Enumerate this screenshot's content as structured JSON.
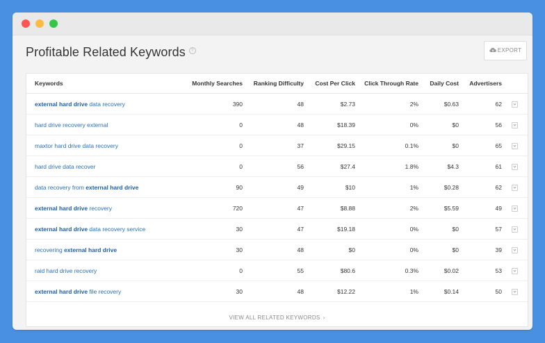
{
  "window": {
    "traffic_lights": [
      "close",
      "minimize",
      "zoom"
    ]
  },
  "header": {
    "title": "Profitable Related Keywords",
    "help_icon": "question-circle-icon",
    "export_label": "EXPORT",
    "export_icon": "cloud-download-icon"
  },
  "table": {
    "columns": [
      "Keywords",
      "Monthly Searches",
      "Ranking Difficulty",
      "Cost Per Click",
      "Click Through Rate",
      "Daily Cost",
      "Advertisers"
    ],
    "rows": [
      {
        "kw_pre": "",
        "kw_bold": "external hard drive",
        "kw_post": " data recovery",
        "searches": "390",
        "difficulty": "48",
        "cpc": "$2.73",
        "ctr": "2%",
        "daily": "$0.63",
        "adv": "62"
      },
      {
        "kw_pre": "hard drive recovery external",
        "kw_bold": "",
        "kw_post": "",
        "searches": "0",
        "difficulty": "48",
        "cpc": "$18.39",
        "ctr": "0%",
        "daily": "$0",
        "adv": "56"
      },
      {
        "kw_pre": "maxtor hard drive data recovery",
        "kw_bold": "",
        "kw_post": "",
        "searches": "0",
        "difficulty": "37",
        "cpc": "$29.15",
        "ctr": "0.1%",
        "daily": "$0",
        "adv": "65"
      },
      {
        "kw_pre": "hard drive data recover",
        "kw_bold": "",
        "kw_post": "",
        "searches": "0",
        "difficulty": "56",
        "cpc": "$27.4",
        "ctr": "1.8%",
        "daily": "$4.3",
        "adv": "61"
      },
      {
        "kw_pre": "data recovery from ",
        "kw_bold": "external hard drive",
        "kw_post": "",
        "searches": "90",
        "difficulty": "49",
        "cpc": "$10",
        "ctr": "1%",
        "daily": "$0.28",
        "adv": "62"
      },
      {
        "kw_pre": "",
        "kw_bold": "external hard drive",
        "kw_post": " recovery",
        "searches": "720",
        "difficulty": "47",
        "cpc": "$8.88",
        "ctr": "2%",
        "daily": "$5.59",
        "adv": "49"
      },
      {
        "kw_pre": "",
        "kw_bold": "external hard drive",
        "kw_post": " data recovery service",
        "searches": "30",
        "difficulty": "47",
        "cpc": "$19.18",
        "ctr": "0%",
        "daily": "$0",
        "adv": "57"
      },
      {
        "kw_pre": "recovering ",
        "kw_bold": "external hard drive",
        "kw_post": "",
        "searches": "30",
        "difficulty": "48",
        "cpc": "$0",
        "ctr": "0%",
        "daily": "$0",
        "adv": "39"
      },
      {
        "kw_pre": "raid hard drive recovery",
        "kw_bold": "",
        "kw_post": "",
        "searches": "0",
        "difficulty": "55",
        "cpc": "$80.6",
        "ctr": "0.3%",
        "daily": "$0.02",
        "adv": "53"
      },
      {
        "kw_pre": "",
        "kw_bold": "external hard drive",
        "kw_post": " file recovery",
        "searches": "30",
        "difficulty": "48",
        "cpc": "$12.22",
        "ctr": "1%",
        "daily": "$0.14",
        "adv": "50"
      }
    ],
    "row_action_icon": "expand-chevron-icon"
  },
  "footer": {
    "view_all_label": "VIEW ALL RELATED KEYWORDS",
    "chevron": "›"
  },
  "colors": {
    "background": "#4a90e2",
    "link": "#2a6fb6",
    "link_bold": "#1d5ea8"
  }
}
